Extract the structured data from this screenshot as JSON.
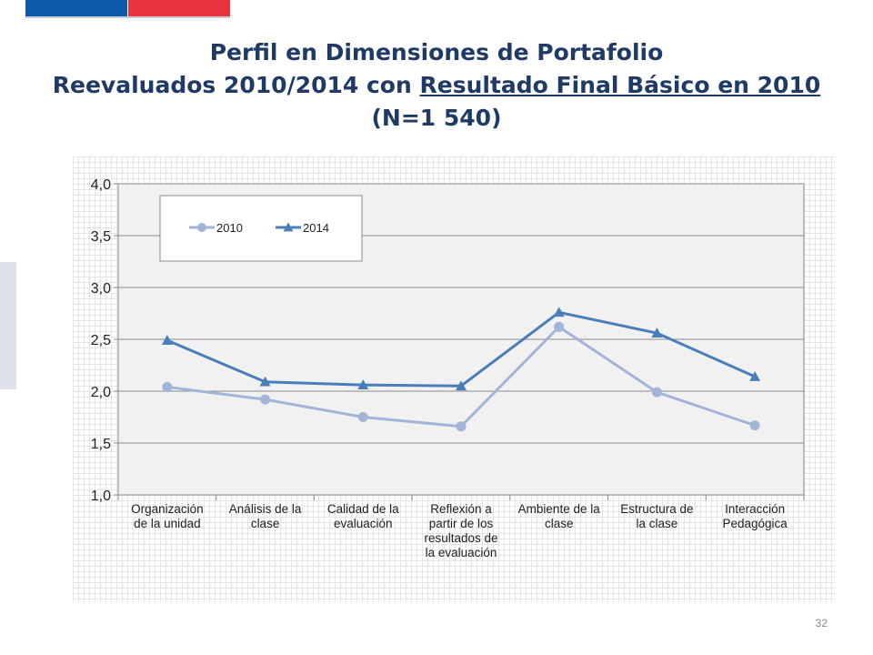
{
  "page": {
    "title_line1": "Perfil en Dimensiones de Portafolio",
    "title_line2_prefix": "Reevaluados 2010/2014 con ",
    "title_line2_underlined": "Resultado Final Básico en 2010",
    "title_line3": "(N=1 540)",
    "page_number": "32",
    "colors": {
      "brand_blue": "#0f5aa8",
      "brand_red": "#e8343f",
      "title": "#1f3a64"
    }
  },
  "chart_data": {
    "type": "line",
    "categories": [
      [
        "Organización",
        "de la unidad"
      ],
      [
        "Análisis de la",
        "clase"
      ],
      [
        "Calidad de la",
        "evaluación"
      ],
      [
        "Reflexión a",
        "partir de los",
        "resultados de",
        "la evaluación"
      ],
      [
        "Ambiente de la",
        "clase"
      ],
      [
        "Estructura de",
        "la clase"
      ],
      [
        "Interacción",
        "Pedagógica"
      ]
    ],
    "series": [
      {
        "name": "2010",
        "marker": "circle",
        "color": "#a3b5d6",
        "values": [
          2.04,
          1.92,
          1.75,
          1.66,
          2.62,
          1.99,
          1.67
        ]
      },
      {
        "name": "2014",
        "marker": "triangle",
        "color": "#4a7ebb",
        "values": [
          2.49,
          2.09,
          2.06,
          2.05,
          2.76,
          2.56,
          2.14
        ]
      }
    ],
    "ylim": [
      1.0,
      4.0
    ],
    "yticks": [
      "1,0",
      "1,5",
      "2,0",
      "2,5",
      "3,0",
      "3,5",
      "4,0"
    ],
    "grid": true,
    "legend_position": "top-left"
  }
}
